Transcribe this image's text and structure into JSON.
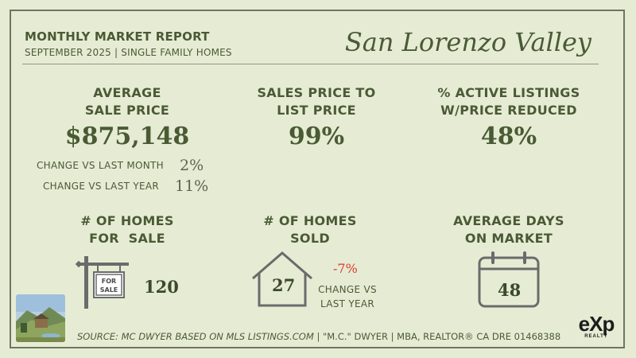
{
  "header": {
    "title": "MONTHLY MARKET REPORT",
    "subtitle": "SEPTEMBER 2025 | SINGLE FAMILY HOMES",
    "location": "San Lorenzo Valley"
  },
  "stats": {
    "avg_price": {
      "label_line1": "AVERAGE",
      "label_line2": "SALE PRICE",
      "value": "$875,148",
      "change_month_label": "CHANGE VS LAST MONTH",
      "change_month_value": "2%",
      "change_year_label": "CHANGE VS LAST YEAR",
      "change_year_value": "11%"
    },
    "sales_to_list": {
      "label_line1": "SALES PRICE TO",
      "label_line2": "LIST PRICE",
      "value": "99%"
    },
    "price_reduced": {
      "label_line1": "% ACTIVE LISTINGS",
      "label_line2": "W/PRICE REDUCED",
      "value": "48%"
    },
    "for_sale": {
      "label_line1": "# OF HOMES",
      "label_line2": "FOR  SALE",
      "value": "120",
      "sign_line1": "FOR",
      "sign_line2": "SALE"
    },
    "sold": {
      "label_line1": "# OF HOMES",
      "label_line2": "SOLD",
      "value": "27",
      "change_value": "-7%",
      "change_label_line1": "CHANGE VS",
      "change_label_line2": "LAST YEAR"
    },
    "days_on_market": {
      "label_line1": "AVERAGE DAYS",
      "label_line2": "ON MARKET",
      "value": "48"
    }
  },
  "footer": {
    "source": "SOURCE: MC DWYER BASED ON MLS LISTINGS.COM",
    "agent": "| \"M.C.\" DWYER | MBA, REALTOR® CA DRE 01468388"
  },
  "brand": {
    "logo": "eXp",
    "logo_sub": "REALTY"
  },
  "icons": [
    "for-sale-sign-icon",
    "house-icon",
    "calendar-icon",
    "landscape-photo"
  ],
  "colors": {
    "background": "#e6ecd4",
    "text": "#4a5a35",
    "accent_red": "#d93a2a"
  }
}
